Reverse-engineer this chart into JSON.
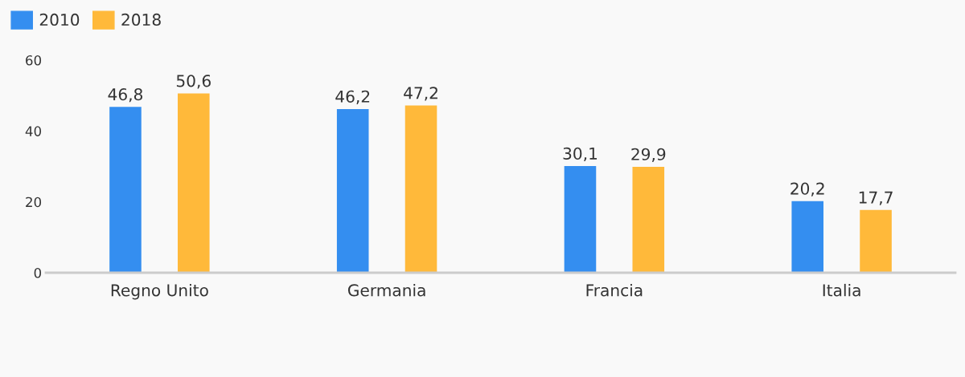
{
  "chart_data": {
    "type": "bar",
    "categories": [
      "Regno Unito",
      "Germania",
      "Francia",
      "Italia"
    ],
    "series": [
      {
        "name": "2010",
        "color": "#348ef0",
        "values": [
          46.8,
          46.2,
          30.1,
          20.2
        ],
        "value_labels": [
          "46,8",
          "46,2",
          "30,1",
          "20,2"
        ]
      },
      {
        "name": "2018",
        "color": "#ffb93a",
        "values": [
          50.6,
          47.2,
          29.9,
          17.7
        ],
        "value_labels": [
          "50,6",
          "47,2",
          "29,9",
          "17,7"
        ]
      }
    ],
    "ylim": [
      0,
      60
    ],
    "yticks": [
      0,
      20,
      40,
      60
    ],
    "grid": false,
    "legend": "top left"
  }
}
